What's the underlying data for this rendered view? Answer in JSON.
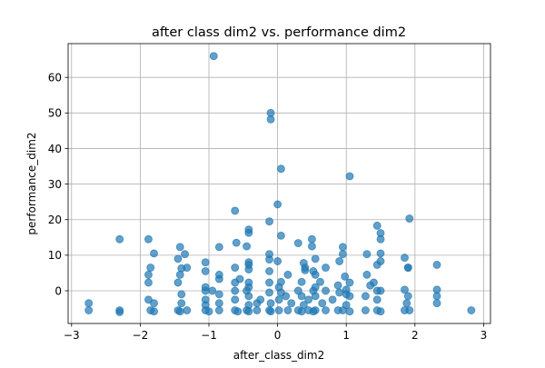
{
  "chart_data": {
    "type": "scatter",
    "title": "after class dim2 vs. performance dim2",
    "xlabel": "after_class_dim2",
    "ylabel": "performance_dim2",
    "xlim": [
      -3.05,
      3.1
    ],
    "ylim": [
      -9.2,
      69.5
    ],
    "xticks": [
      -3,
      -2,
      -1,
      0,
      1,
      2,
      3
    ],
    "yticks": [
      0,
      10,
      20,
      30,
      40,
      50,
      60
    ],
    "grid": true,
    "color": "#1f77b4",
    "alpha": 0.7,
    "points": [
      [
        -0.93,
        66.0
      ],
      [
        -0.1,
        50.0
      ],
      [
        -0.1,
        48.2
      ],
      [
        0.05,
        34.3
      ],
      [
        1.05,
        32.2
      ],
      [
        0.0,
        24.3
      ],
      [
        -0.62,
        22.5
      ],
      [
        1.92,
        20.3
      ],
      [
        -0.12,
        19.5
      ],
      [
        1.45,
        18.3
      ],
      [
        -0.42,
        17.2
      ],
      [
        -0.42,
        16.3
      ],
      [
        1.5,
        16.2
      ],
      [
        0.05,
        15.5
      ],
      [
        -2.3,
        14.5
      ],
      [
        -1.88,
        14.5
      ],
      [
        0.5,
        14.5
      ],
      [
        1.5,
        14.5
      ],
      [
        -0.6,
        13.5
      ],
      [
        0.3,
        13.4
      ],
      [
        -1.42,
        12.3
      ],
      [
        -0.85,
        12.3
      ],
      [
        -0.45,
        12.5
      ],
      [
        0.5,
        12.5
      ],
      [
        0.95,
        12.3
      ],
      [
        -1.8,
        10.5
      ],
      [
        -1.35,
        10.3
      ],
      [
        -0.12,
        10.3
      ],
      [
        0.95,
        10.3
      ],
      [
        1.3,
        10.3
      ],
      [
        1.5,
        10.5
      ],
      [
        0.55,
        9.0
      ],
      [
        1.85,
        9.3
      ],
      [
        -1.45,
        9.0
      ],
      [
        -0.12,
        8.8
      ],
      [
        0.0,
        8.3
      ],
      [
        0.9,
        8.3
      ],
      [
        1.5,
        8.3
      ],
      [
        -1.05,
        8.0
      ],
      [
        -0.42,
        8.0
      ],
      [
        0.38,
        7.8
      ],
      [
        0.4,
        6.5
      ],
      [
        -0.42,
        7.3
      ],
      [
        0.7,
        6.5
      ],
      [
        1.45,
        7.3
      ],
      [
        2.32,
        7.3
      ],
      [
        -1.85,
        6.5
      ],
      [
        -1.4,
        6.3
      ],
      [
        -1.32,
        6.5
      ],
      [
        -0.62,
        6.5
      ],
      [
        -0.42,
        6.0
      ],
      [
        0.4,
        5.8
      ],
      [
        1.9,
        6.5
      ],
      [
        1.9,
        6.5
      ],
      [
        -1.05,
        5.5
      ],
      [
        -0.12,
        5.5
      ],
      [
        0.52,
        5.5
      ],
      [
        -0.85,
        4.5
      ],
      [
        0.15,
        4.5
      ],
      [
        0.55,
        4.5
      ],
      [
        0.98,
        4.0
      ],
      [
        1.3,
        4.5
      ],
      [
        -1.88,
        4.5
      ],
      [
        -1.42,
        4.5
      ],
      [
        -0.85,
        3.3
      ],
      [
        -0.55,
        3.3
      ],
      [
        -0.12,
        2.3
      ],
      [
        0.05,
        2.5
      ],
      [
        0.35,
        2.5
      ],
      [
        0.62,
        2.5
      ],
      [
        -1.45,
        2.3
      ],
      [
        -1.88,
        2.3
      ],
      [
        -0.62,
        2.3
      ],
      [
        -0.42,
        2.3
      ],
      [
        1.05,
        2.3
      ],
      [
        0.88,
        1.5
      ],
      [
        1.4,
        2.3
      ],
      [
        -1.05,
        1.0
      ],
      [
        -0.42,
        1.0
      ],
      [
        0.02,
        1.0
      ],
      [
        0.55,
        1.0
      ],
      [
        1.35,
        1.5
      ],
      [
        1.85,
        0.3
      ],
      [
        2.32,
        0.3
      ],
      [
        1.0,
        0.3
      ],
      [
        -1.05,
        0.0
      ],
      [
        -0.95,
        0.0
      ],
      [
        -0.62,
        0.0
      ],
      [
        -0.45,
        0.0
      ],
      [
        0.3,
        0.0
      ],
      [
        0.52,
        0.0
      ],
      [
        0.7,
        0.0
      ],
      [
        1.45,
        0.0
      ],
      [
        1.5,
        0.0
      ],
      [
        -0.12,
        -0.5
      ],
      [
        0.05,
        -0.5
      ],
      [
        0.9,
        -0.5
      ],
      [
        1.0,
        -1.0
      ],
      [
        -1.4,
        -1.0
      ],
      [
        -0.85,
        -1.0
      ],
      [
        -0.42,
        -1.5
      ],
      [
        0.12,
        -1.5
      ],
      [
        0.35,
        -1.5
      ],
      [
        0.55,
        -1.5
      ],
      [
        1.05,
        -1.5
      ],
      [
        1.28,
        -1.5
      ],
      [
        1.9,
        -1.5
      ],
      [
        2.32,
        -1.5
      ],
      [
        -1.88,
        -2.5
      ],
      [
        -1.05,
        -2.5
      ],
      [
        -0.62,
        -2.5
      ],
      [
        -0.25,
        -2.5
      ],
      [
        0.02,
        -2.5
      ],
      [
        0.45,
        -2.5
      ],
      [
        0.8,
        -2.5
      ],
      [
        1.45,
        -2.5
      ],
      [
        -2.75,
        -3.5
      ],
      [
        -1.8,
        -3.5
      ],
      [
        -0.85,
        -3.5
      ],
      [
        -0.3,
        -3.5
      ],
      [
        -0.1,
        -3.5
      ],
      [
        0.2,
        -3.5
      ],
      [
        0.65,
        -3.5
      ],
      [
        1.88,
        -3.5
      ],
      [
        2.32,
        -3.5
      ],
      [
        -1.4,
        -3.5
      ],
      [
        -1.05,
        -4.0
      ],
      [
        -0.42,
        -4.0
      ],
      [
        0.38,
        -4.0
      ],
      [
        1.0,
        -4.0
      ],
      [
        -2.75,
        -5.5
      ],
      [
        -2.3,
        -5.5
      ],
      [
        -2.3,
        -6.0
      ],
      [
        -1.85,
        -5.5
      ],
      [
        -1.8,
        -5.8
      ],
      [
        -1.45,
        -5.5
      ],
      [
        -1.42,
        -5.8
      ],
      [
        -1.32,
        -5.5
      ],
      [
        -1.05,
        -5.5
      ],
      [
        -1.0,
        -5.8
      ],
      [
        -0.85,
        -5.5
      ],
      [
        -0.62,
        -5.5
      ],
      [
        -0.58,
        -5.8
      ],
      [
        -0.45,
        -5.5
      ],
      [
        -0.42,
        -5.8
      ],
      [
        -0.3,
        -5.5
      ],
      [
        -0.12,
        -5.5
      ],
      [
        -0.1,
        -5.8
      ],
      [
        0.02,
        -5.5
      ],
      [
        0.15,
        -5.5
      ],
      [
        0.3,
        -5.5
      ],
      [
        0.35,
        -5.8
      ],
      [
        0.45,
        -5.5
      ],
      [
        0.52,
        -5.8
      ],
      [
        0.55,
        -5.5
      ],
      [
        0.7,
        -5.5
      ],
      [
        0.88,
        -5.5
      ],
      [
        0.95,
        -5.5
      ],
      [
        1.05,
        -5.8
      ],
      [
        1.28,
        -5.5
      ],
      [
        1.45,
        -5.5
      ],
      [
        1.5,
        -5.8
      ],
      [
        1.85,
        -5.5
      ],
      [
        1.92,
        -5.5
      ],
      [
        2.82,
        -5.5
      ]
    ]
  }
}
